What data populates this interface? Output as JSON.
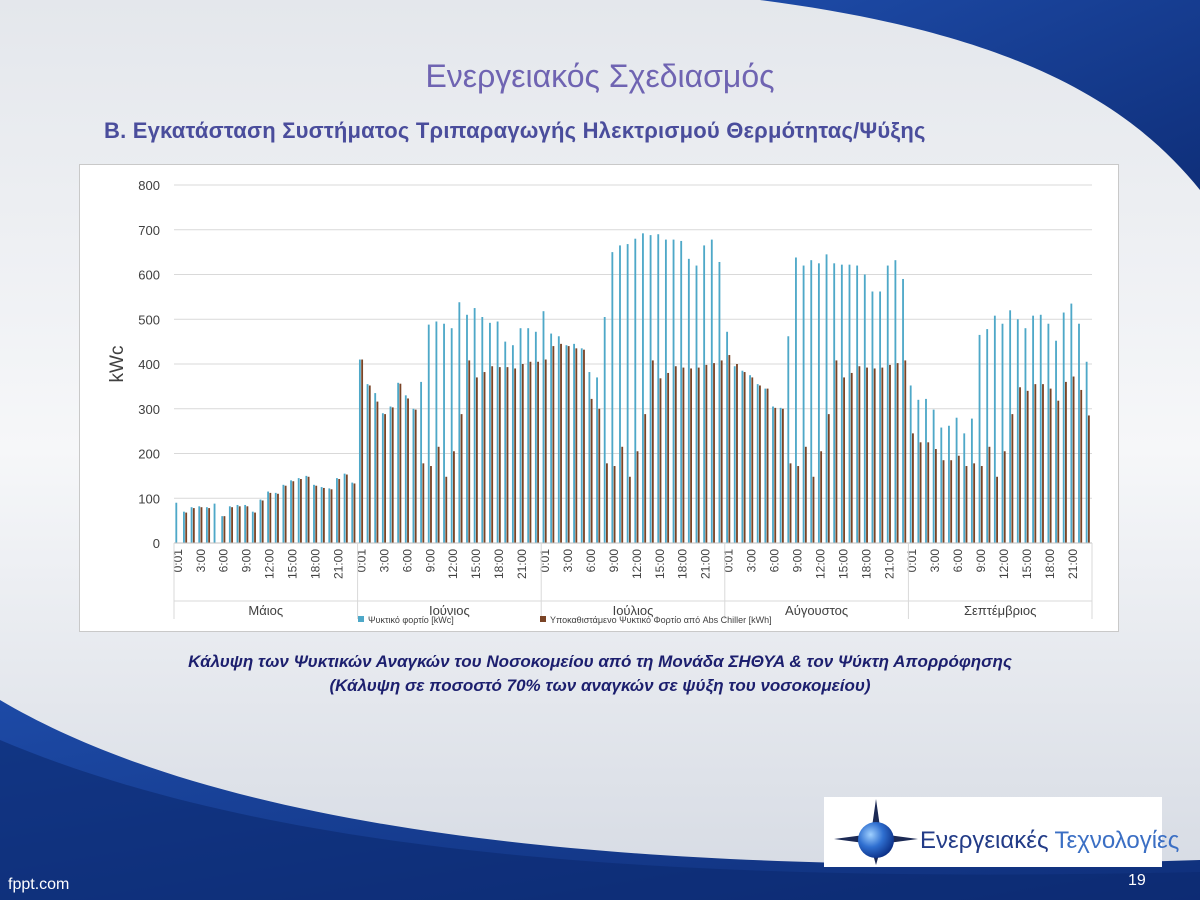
{
  "slide": {
    "title": "Ενεργειακός Σχεδιασμός",
    "subtitle": "B.  Εγκατάσταση Συστήματος Τριπαραγωγής Ηλεκτρισμού Θερμότητας/Ψύξης",
    "caption_line1": "Κάλυψη των Ψυκτικών Αναγκών του Νοσοκομείου από τη Μονάδα ΣΗΘΥΑ & τον Ψύκτη Απορρόφησης",
    "caption_line2": "(Κάλυψη σε ποσοστό 70% των αναγκών σε ψύξη του νοσοκομείου)",
    "page_number": "19",
    "footer_brand": "fppt.com",
    "logo_text_1": "Ενεργειακές",
    "logo_text_2": "Τεχνολογίες"
  },
  "colors": {
    "title": "#6f64b2",
    "subtitle": "#4a4d9c",
    "caption": "#1c1f6e",
    "series_cooling": "#4ea8c8",
    "series_absorption": "#7a4426",
    "background_blue": "#1b46a0"
  },
  "chart_data": {
    "type": "bar",
    "title": "",
    "xlabel": "",
    "ylabel": "kWc",
    "ylim": [
      0,
      800
    ],
    "yticks": [
      0,
      100,
      200,
      300,
      400,
      500,
      600,
      700,
      800
    ],
    "grid": true,
    "legend_position": "bottom",
    "hour_tick_labels": [
      "0:01",
      "3:00",
      "6:00",
      "9:00",
      "12:00",
      "15:00",
      "18:00",
      "21:00"
    ],
    "months": [
      "Μάιος",
      "Ιούνιος",
      "Ιούλιος",
      "Αύγουστος",
      "Σεπτέμβριος"
    ],
    "series": [
      {
        "name": "Ψυκτικό φορτίο [kWc]",
        "values": [
          [
            90,
            70,
            80,
            82,
            80,
            88,
            60,
            82,
            85,
            85,
            70,
            97,
            115,
            112,
            130,
            140,
            145,
            150,
            130,
            125,
            122,
            145,
            155,
            135
          ],
          [
            410,
            355,
            335,
            290,
            305,
            358,
            330,
            300,
            360,
            488,
            495,
            490,
            480,
            538,
            510,
            525,
            505,
            492,
            495,
            450,
            442,
            480,
            480,
            472
          ],
          [
            518,
            468,
            462,
            442,
            445,
            435,
            382,
            370,
            505,
            650,
            665,
            668,
            680,
            692,
            688,
            690,
            678,
            678,
            675,
            635,
            620,
            665,
            678,
            628
          ],
          [
            472,
            395,
            385,
            375,
            355,
            345,
            305,
            302,
            462,
            638,
            620,
            632,
            625,
            645,
            625,
            622,
            622,
            620,
            600,
            562,
            562,
            620,
            632,
            590
          ],
          [
            352,
            320,
            322,
            298,
            258,
            262,
            280,
            245,
            278,
            465,
            478,
            508,
            490,
            520,
            500,
            480,
            508,
            510,
            490,
            452,
            515,
            535,
            490,
            405
          ]
        ]
      },
      {
        "name": "Υποκαθιστάμενο Ψυκτικό Φορτίο από Abs Chiller [kWh]",
        "values": [
          [
            0,
            68,
            78,
            80,
            78,
            0,
            60,
            80,
            82,
            82,
            68,
            95,
            112,
            110,
            128,
            138,
            143,
            148,
            128,
            123,
            120,
            143,
            153,
            133
          ],
          [
            410,
            352,
            316,
            288,
            303,
            356,
            323,
            298,
            178,
            172,
            215,
            148,
            205,
            288,
            408,
            370,
            382,
            395,
            393,
            393,
            390,
            400,
            405,
            405
          ],
          [
            410,
            440,
            445,
            440,
            435,
            432,
            322,
            300,
            178,
            172,
            215,
            148,
            205,
            288,
            408,
            368,
            380,
            395,
            392,
            390,
            392,
            398,
            402,
            408
          ],
          [
            420,
            400,
            382,
            370,
            352,
            345,
            302,
            300,
            178,
            172,
            215,
            148,
            205,
            288,
            408,
            370,
            380,
            395,
            392,
            390,
            392,
            398,
            402,
            408
          ],
          [
            245,
            225,
            225,
            210,
            185,
            185,
            195,
            172,
            178,
            172,
            215,
            148,
            205,
            288,
            348,
            340,
            355,
            355,
            345,
            318,
            360,
            372,
            342,
            285
          ]
        ]
      }
    ]
  }
}
